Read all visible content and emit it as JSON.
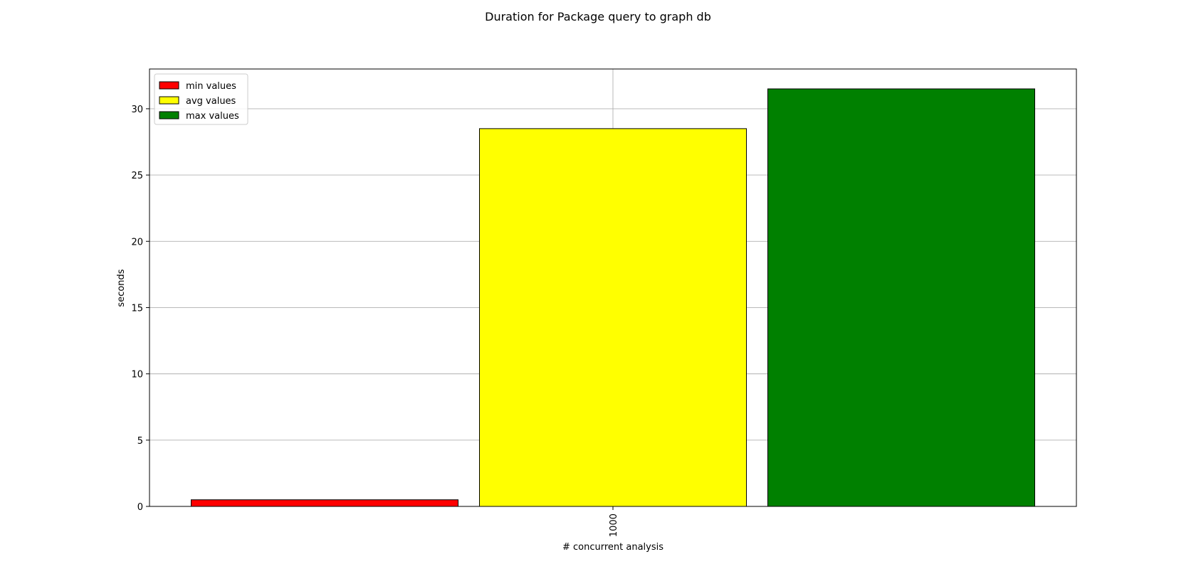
{
  "chart_data": {
    "type": "bar",
    "title": "Duration for Package query to graph db",
    "xlabel": "# concurrent analysis",
    "ylabel": "seconds",
    "categories": [
      "1000"
    ],
    "ylim": [
      0,
      33
    ],
    "yticks": [
      0,
      5,
      10,
      15,
      20,
      25,
      30
    ],
    "grid": true,
    "legend_position": "top-left",
    "series": [
      {
        "name": "min values",
        "color": "#ff0000",
        "values": [
          0.5
        ]
      },
      {
        "name": "avg values",
        "color": "#ffff00",
        "values": [
          28.5
        ]
      },
      {
        "name": "max values",
        "color": "#008000",
        "values": [
          31.5
        ]
      }
    ]
  }
}
